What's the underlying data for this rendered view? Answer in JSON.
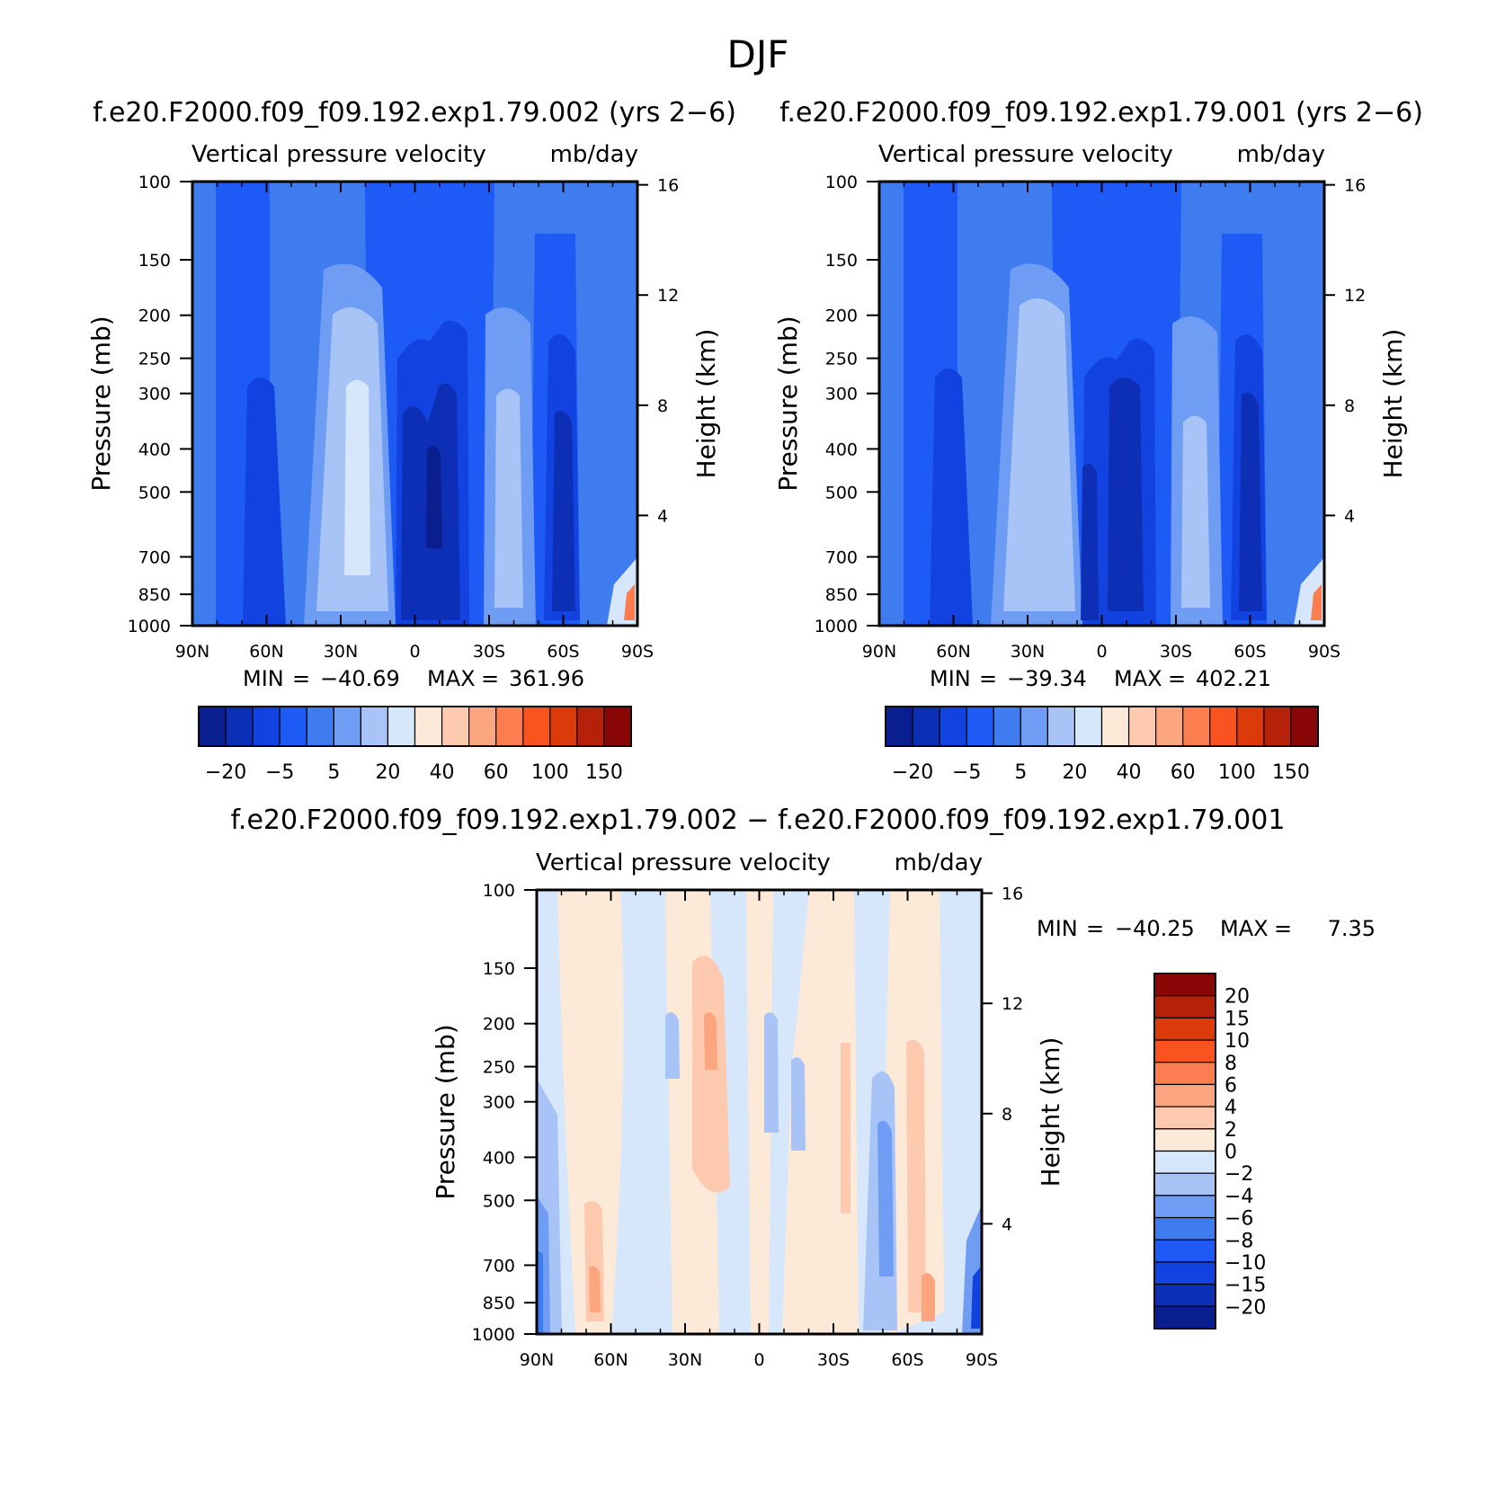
{
  "figure": {
    "title": "DJF"
  },
  "chart_data": [
    {
      "type": "heatmap",
      "title": "f.e20.F2000.f09_f09.192.exp1.79.002 (yrs 2−6)",
      "subtitle_left": "Vertical pressure velocity",
      "subtitle_right": "mb/day",
      "ylabel": "Pressure (mb)",
      "y2label": "Height (km)",
      "x_ticks": [
        "90N",
        "60N",
        "30N",
        "0",
        "30S",
        "60S",
        "90S"
      ],
      "y_ticks": [
        "100",
        "150",
        "200",
        "250",
        "300",
        "400",
        "500",
        "700",
        "850",
        "1000"
      ],
      "y_tick_values": [
        100,
        150,
        200,
        250,
        300,
        400,
        500,
        700,
        850,
        1000
      ],
      "y2_ticks": [
        "16",
        "12",
        "8",
        "4"
      ],
      "y2_tick_values": [
        16,
        12,
        8,
        4
      ],
      "ylim": [
        1000,
        100
      ],
      "yscale": "log",
      "stats": {
        "min_label": "MIN",
        "min": "−40.69",
        "max_label": "MAX",
        "max": "361.96"
      },
      "colorbar": {
        "orientation": "horizontal",
        "colors": [
          "#0a1f8f",
          "#0c2fb5",
          "#1242df",
          "#1e5af5",
          "#3f7cf0",
          "#6f9df3",
          "#a8c4f7",
          "#d6e7fb",
          "#fde9d8",
          "#fdcab0",
          "#fca680",
          "#fc7e50",
          "#f9541f",
          "#dd3a0b",
          "#b52209",
          "#8a0707"
        ],
        "labels": [
          "−20",
          "−5",
          "5",
          "20",
          "40",
          "60",
          "100",
          "150"
        ]
      },
      "field_summary": "Mostly negative (blue) values; strongest negative near 0–10S and 60N–70N lower/mid troposphere; weakest (lightest) near 20N–30N and 30S; small positive patch near 90S surface."
    },
    {
      "type": "heatmap",
      "title": "f.e20.F2000.f09_f09.192.exp1.79.001 (yrs 2−6)",
      "subtitle_left": "Vertical pressure velocity",
      "subtitle_right": "mb/day",
      "ylabel": "Pressure (mb)",
      "y2label": "Height (km)",
      "x_ticks": [
        "90N",
        "60N",
        "30N",
        "0",
        "30S",
        "60S",
        "90S"
      ],
      "y_ticks": [
        "100",
        "150",
        "200",
        "250",
        "300",
        "400",
        "500",
        "700",
        "850",
        "1000"
      ],
      "y_tick_values": [
        100,
        150,
        200,
        250,
        300,
        400,
        500,
        700,
        850,
        1000
      ],
      "y2_ticks": [
        "16",
        "12",
        "8",
        "4"
      ],
      "y2_tick_values": [
        16,
        12,
        8,
        4
      ],
      "ylim": [
        1000,
        100
      ],
      "yscale": "log",
      "stats": {
        "min_label": "MIN",
        "min": "−39.34",
        "max_label": "MAX",
        "max": "402.21"
      },
      "colorbar": {
        "orientation": "horizontal",
        "colors": [
          "#0a1f8f",
          "#0c2fb5",
          "#1242df",
          "#1e5af5",
          "#3f7cf0",
          "#6f9df3",
          "#a8c4f7",
          "#d6e7fb",
          "#fde9d8",
          "#fdcab0",
          "#fca680",
          "#fc7e50",
          "#f9541f",
          "#dd3a0b",
          "#b52209",
          "#8a0707"
        ],
        "labels": [
          "−20",
          "−5",
          "5",
          "20",
          "40",
          "60",
          "100",
          "150"
        ]
      },
      "field_summary": "Similar to panel 1; strongest negative near 0–10S and 60N–70N; lightest near 20N–30N and 30S."
    },
    {
      "type": "heatmap",
      "title": "f.e20.F2000.f09_f09.192.exp1.79.002 − f.e20.F2000.f09_f09.192.exp1.79.001",
      "subtitle_left": "Vertical pressure velocity",
      "subtitle_right": "mb/day",
      "ylabel": "Pressure (mb)",
      "y2label": "Height (km)",
      "x_ticks": [
        "90N",
        "60N",
        "30N",
        "0",
        "30S",
        "60S",
        "90S"
      ],
      "y_ticks": [
        "100",
        "150",
        "200",
        "250",
        "300",
        "400",
        "500",
        "700",
        "850",
        "1000"
      ],
      "y_tick_values": [
        100,
        150,
        200,
        250,
        300,
        400,
        500,
        700,
        850,
        1000
      ],
      "y2_ticks": [
        "16",
        "12",
        "8",
        "4"
      ],
      "y2_tick_values": [
        16,
        12,
        8,
        4
      ],
      "ylim": [
        1000,
        100
      ],
      "yscale": "log",
      "stats": {
        "min_label": "MIN",
        "min": "−40.25",
        "max_label": "MAX",
        "max": "7.35"
      },
      "colorbar": {
        "orientation": "vertical",
        "colors": [
          "#8a0707",
          "#b52209",
          "#dd3a0b",
          "#f9541f",
          "#fc7e50",
          "#fca680",
          "#fdcab0",
          "#fde9d8",
          "#d6e7fb",
          "#a8c4f7",
          "#6f9df3",
          "#3f7cf0",
          "#1e5af5",
          "#1242df",
          "#0c2fb5",
          "#0a1f8f"
        ],
        "labels": [
          "20",
          "15",
          "10",
          "8",
          "6",
          "4",
          "2",
          "0",
          "−2",
          "−4",
          "−6",
          "−8",
          "−10",
          "−15",
          "−20"
        ]
      },
      "field_summary": "Alternating weak positive (light orange) and weak negative (light blue) vertical bands between about −2 and 2; stronger positive near 20N upper troposphere and near 60S–70S surface; strong negative at 90N and 90S surface."
    }
  ]
}
